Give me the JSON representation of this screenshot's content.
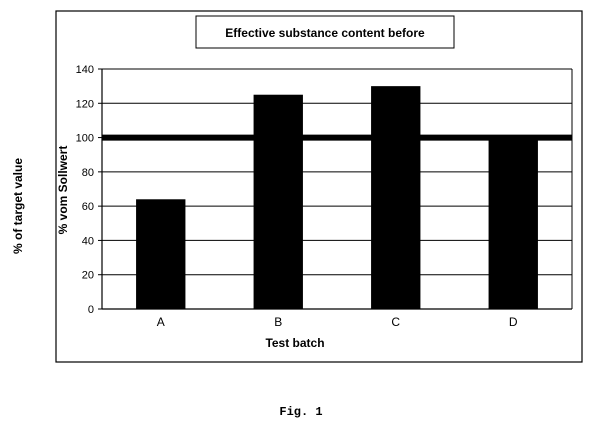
{
  "outer_ylabel": "% of target value",
  "figure_caption": "Fig. 1",
  "chart_data": {
    "type": "bar",
    "title": "Effective substance content before",
    "xlabel": "Test batch",
    "ylabel": "% vom Sollwert",
    "categories": [
      "A",
      "B",
      "C",
      "D"
    ],
    "values": [
      64,
      125,
      130,
      101
    ],
    "ylim": [
      0,
      140
    ],
    "yticks": [
      0,
      20,
      40,
      60,
      80,
      100,
      120,
      140
    ],
    "reference_line": 100,
    "grid": true,
    "legend": "none",
    "colors": {
      "bar": "#000000",
      "grid": "#000000",
      "background": "#ffffff"
    }
  }
}
